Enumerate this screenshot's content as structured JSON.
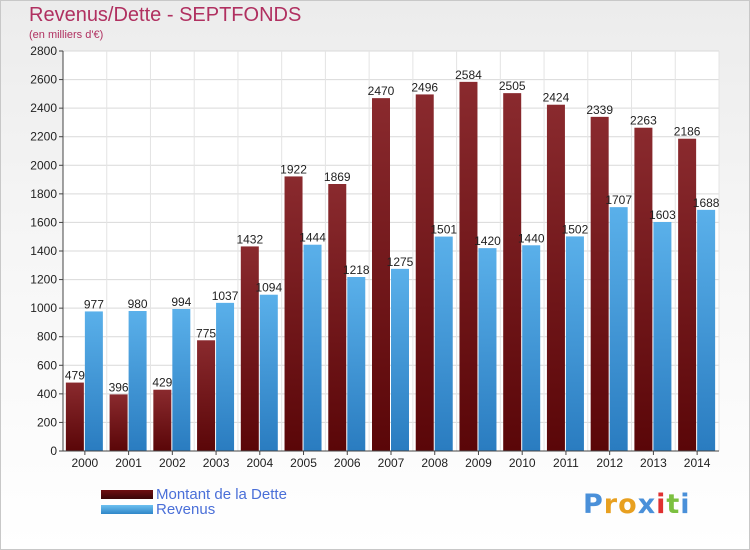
{
  "header": {
    "title": "Revenus/Dette - SEPTFONDS",
    "subtitle": "(en milliers d'€)"
  },
  "legend": [
    {
      "label": "Montant de la Dette",
      "color": "#6e0f12"
    },
    {
      "label": "Revenus",
      "color": "#4aa3e0"
    }
  ],
  "logo": {
    "text": "Proxiti",
    "letter_colors": [
      "#4a90d9",
      "#e8a020",
      "#e8a020",
      "#4a90d9",
      "#e03030",
      "#7cc040",
      "#4a90d9"
    ]
  },
  "chart_data": {
    "type": "bar",
    "title": "Revenus/Dette - SEPTFONDS",
    "subtitle": "(en milliers d'€)",
    "categories": [
      "2000",
      "2001",
      "2002",
      "2003",
      "2004",
      "2005",
      "2006",
      "2007",
      "2008",
      "2009",
      "2010",
      "2011",
      "2012",
      "2013",
      "2014"
    ],
    "series": [
      {
        "name": "Montant de la Dette",
        "color": "#7b1a1e",
        "values": [
          479,
          396,
          429,
          775,
          1432,
          1922,
          1869,
          2470,
          2496,
          2584,
          2505,
          2424,
          2339,
          2263,
          2186
        ]
      },
      {
        "name": "Revenus",
        "color": "#4aa3e0",
        "values": [
          977,
          980,
          994,
          1037,
          1094,
          1444,
          1218,
          1275,
          1501,
          1420,
          1440,
          1502,
          1707,
          1603,
          1688
        ]
      }
    ],
    "ylim": [
      0,
      2800
    ],
    "ytick_step": 200,
    "grid": true,
    "legend_position": "bottom-left"
  }
}
